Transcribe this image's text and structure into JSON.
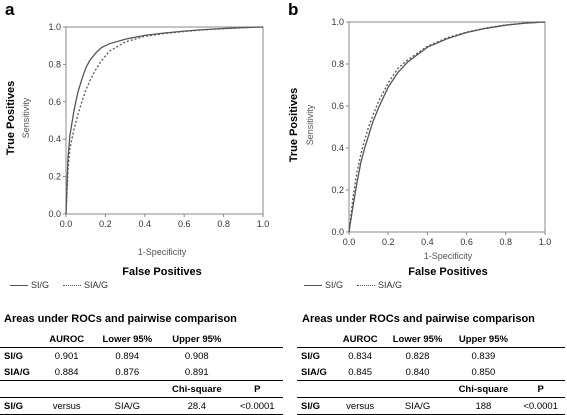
{
  "panels": [
    {
      "letter": "a",
      "y_big": "True Positives",
      "y_small": "Sensitivity",
      "x_small": "1-Specificity",
      "x_big": "False Positives",
      "legend": [
        "SI/G",
        "SIA/G"
      ],
      "table_title": "Areas under ROCs and pairwise comparison",
      "table_header": [
        "",
        "AUROC",
        "Lower 95%",
        "Upper 95%"
      ],
      "table_rows": [
        [
          "SI/G",
          "0.901",
          "0.894",
          "0.908"
        ],
        [
          "SIA/G",
          "0.884",
          "0.876",
          "0.891"
        ]
      ],
      "compare_header": [
        "Chi-square",
        "P"
      ],
      "compare_row": [
        "SI/G",
        "versus",
        "SIA/G",
        "28.4",
        "<0.0001"
      ]
    },
    {
      "letter": "b",
      "y_big": "True Positives",
      "y_small": "Sensitivity",
      "x_small": "1-Specificity",
      "x_big": "False Positives",
      "legend": [
        "SI/G",
        "SIA/G"
      ],
      "table_title": "Areas under ROCs and pairwise comparison",
      "table_header": [
        "",
        "AUROC",
        "Lower 95%",
        "Upper 95%"
      ],
      "table_rows": [
        [
          "SI/G",
          "0.834",
          "0.828",
          "0.839"
        ],
        [
          "SIA/G",
          "0.845",
          "0.840",
          "0.850"
        ]
      ],
      "compare_header": [
        "Chi-square",
        "P"
      ],
      "compare_row": [
        "SI/G",
        "versus",
        "SIA/G",
        "188",
        "<0.0001"
      ]
    }
  ],
  "chart_data": [
    {
      "type": "line",
      "panel": "a",
      "xlabel": "1-Specificity",
      "ylabel": "Sensitivity",
      "xlim": [
        0,
        1
      ],
      "ylim": [
        0,
        1
      ],
      "xticks": [
        "0.0",
        "0.2",
        "0.4",
        "0.6",
        "0.8",
        "1.0"
      ],
      "yticks": [
        "0.0",
        "0.2",
        "0.4",
        "0.6",
        "0.8",
        "1.0"
      ],
      "grid": false,
      "series": [
        {
          "name": "SI/G",
          "style": "solid",
          "color": "#555555",
          "x": [
            0,
            0.01,
            0.02,
            0.04,
            0.06,
            0.08,
            0.1,
            0.12,
            0.15,
            0.18,
            0.22,
            0.3,
            0.4,
            0.5,
            0.6,
            0.7,
            0.8,
            0.9,
            1.0
          ],
          "y": [
            0,
            0.3,
            0.42,
            0.55,
            0.65,
            0.72,
            0.78,
            0.82,
            0.86,
            0.89,
            0.91,
            0.935,
            0.955,
            0.968,
            0.978,
            0.986,
            0.992,
            0.997,
            1.0
          ]
        },
        {
          "name": "SIA/G",
          "style": "dotted",
          "color": "#555555",
          "x": [
            0,
            0.01,
            0.02,
            0.04,
            0.06,
            0.08,
            0.1,
            0.12,
            0.15,
            0.18,
            0.22,
            0.3,
            0.4,
            0.5,
            0.6,
            0.7,
            0.8,
            0.9,
            1.0
          ],
          "y": [
            0,
            0.24,
            0.35,
            0.45,
            0.53,
            0.6,
            0.66,
            0.71,
            0.77,
            0.82,
            0.87,
            0.92,
            0.95,
            0.965,
            0.976,
            0.985,
            0.991,
            0.996,
            1.0
          ]
        }
      ]
    },
    {
      "type": "line",
      "panel": "b",
      "xlabel": "1-Specificity",
      "ylabel": "Sensitivity",
      "xlim": [
        0,
        1
      ],
      "ylim": [
        0,
        1
      ],
      "xticks": [
        "0.0",
        "0.2",
        "0.4",
        "0.6",
        "0.8",
        "1.0"
      ],
      "yticks": [
        "0.0",
        "0.2",
        "0.4",
        "0.6",
        "0.8",
        "1.0"
      ],
      "grid": false,
      "series": [
        {
          "name": "SI/G",
          "style": "solid",
          "color": "#555555",
          "x": [
            0,
            0.02,
            0.04,
            0.06,
            0.08,
            0.1,
            0.12,
            0.15,
            0.2,
            0.25,
            0.3,
            0.4,
            0.5,
            0.6,
            0.7,
            0.8,
            0.9,
            1.0
          ],
          "y": [
            0,
            0.12,
            0.23,
            0.33,
            0.4,
            0.46,
            0.52,
            0.59,
            0.69,
            0.76,
            0.81,
            0.88,
            0.92,
            0.95,
            0.97,
            0.985,
            0.995,
            1.0
          ]
        },
        {
          "name": "SIA/G",
          "style": "dotted",
          "color": "#555555",
          "x": [
            0,
            0.02,
            0.04,
            0.06,
            0.08,
            0.1,
            0.12,
            0.15,
            0.2,
            0.25,
            0.3,
            0.4,
            0.5,
            0.6,
            0.7,
            0.8,
            0.9,
            1.0
          ],
          "y": [
            0,
            0.16,
            0.28,
            0.37,
            0.44,
            0.5,
            0.55,
            0.62,
            0.71,
            0.78,
            0.82,
            0.885,
            0.925,
            0.952,
            0.972,
            0.986,
            0.995,
            1.0
          ]
        }
      ]
    }
  ]
}
